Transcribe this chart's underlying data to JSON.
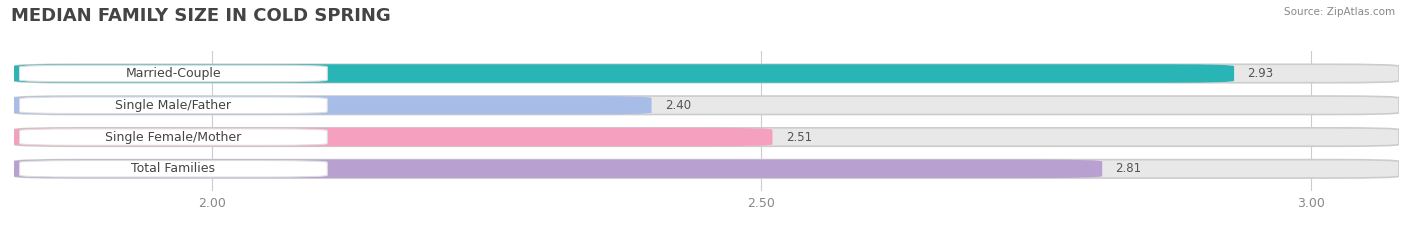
{
  "title": "MEDIAN FAMILY SIZE IN COLD SPRING",
  "source": "Source: ZipAtlas.com",
  "categories": [
    "Married-Couple",
    "Single Male/Father",
    "Single Female/Mother",
    "Total Families"
  ],
  "values": [
    2.93,
    2.4,
    2.51,
    2.81
  ],
  "bar_colors": [
    "#29b5b5",
    "#a8bce8",
    "#f5a0be",
    "#b8a0d0"
  ],
  "label_bg_colors": [
    "#29b5b5",
    "#a8bce8",
    "#f5a0be",
    "#b8a0d0"
  ],
  "xlim": [
    1.82,
    3.08
  ],
  "xticks": [
    2.0,
    2.5,
    3.0
  ],
  "background_color": "#ffffff",
  "bar_bg_color": "#e8e8e8",
  "title_fontsize": 13,
  "label_fontsize": 9,
  "value_fontsize": 8.5,
  "tick_fontsize": 9
}
